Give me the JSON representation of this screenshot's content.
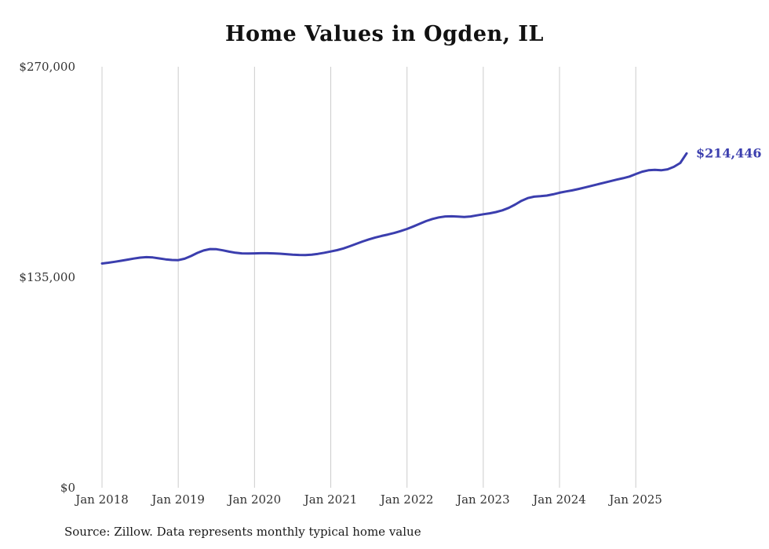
{
  "page": {
    "title": "Home Values in Ogden, IL",
    "source": "Source: Zillow. Data represents monthly typical home value"
  },
  "chart_data": {
    "type": "line",
    "title": "Home Values in Ogden, IL",
    "xlabel": "",
    "ylabel": "",
    "ylim": [
      0,
      270000
    ],
    "grid": "vertical-yearly",
    "legend": "none",
    "line_color": "#3b3eae",
    "grid_color": "#cccccc",
    "tick_color": "#333333",
    "end_label": "$214,446",
    "end_value": 214446,
    "y_ticks": [
      {
        "value": 0,
        "label": "$0"
      },
      {
        "value": 135000,
        "label": "$135,000"
      },
      {
        "value": 270000,
        "label": "$270,000"
      }
    ],
    "x_tick_labels": [
      "Jan 2018",
      "Jan 2019",
      "Jan 2020",
      "Jan 2021",
      "Jan 2022",
      "Jan 2023",
      "Jan 2024",
      "Jan 2025"
    ],
    "x": [
      "2018-01",
      "2018-02",
      "2018-03",
      "2018-04",
      "2018-05",
      "2018-06",
      "2018-07",
      "2018-08",
      "2018-09",
      "2018-10",
      "2018-11",
      "2018-12",
      "2019-01",
      "2019-02",
      "2019-03",
      "2019-04",
      "2019-05",
      "2019-06",
      "2019-07",
      "2019-08",
      "2019-09",
      "2019-10",
      "2019-11",
      "2019-12",
      "2020-01",
      "2020-02",
      "2020-03",
      "2020-04",
      "2020-05",
      "2020-06",
      "2020-07",
      "2020-08",
      "2020-09",
      "2020-10",
      "2020-11",
      "2020-12",
      "2021-01",
      "2021-02",
      "2021-03",
      "2021-04",
      "2021-05",
      "2021-06",
      "2021-07",
      "2021-08",
      "2021-09",
      "2021-10",
      "2021-11",
      "2021-12",
      "2022-01",
      "2022-02",
      "2022-03",
      "2022-04",
      "2022-05",
      "2022-06",
      "2022-07",
      "2022-08",
      "2022-09",
      "2022-10",
      "2022-11",
      "2022-12",
      "2023-01",
      "2023-02",
      "2023-03",
      "2023-04",
      "2023-05",
      "2023-06",
      "2023-07",
      "2023-08",
      "2023-09",
      "2023-10",
      "2023-11",
      "2023-12",
      "2024-01",
      "2024-02",
      "2024-03",
      "2024-04",
      "2024-05",
      "2024-06",
      "2024-07",
      "2024-08",
      "2024-09",
      "2024-10",
      "2024-11",
      "2024-12",
      "2025-01",
      "2025-02",
      "2025-03",
      "2025-04",
      "2025-05",
      "2025-06",
      "2025-07",
      "2025-08",
      "2025-09"
    ],
    "values": [
      143800,
      144300,
      144900,
      145600,
      146300,
      147000,
      147600,
      147900,
      147700,
      147100,
      146500,
      146100,
      146000,
      146900,
      148600,
      150600,
      152200,
      153100,
      153000,
      152300,
      151400,
      150700,
      150300,
      150200,
      150300,
      150400,
      150400,
      150300,
      150100,
      149800,
      149500,
      149300,
      149200,
      149500,
      150000,
      150700,
      151500,
      152400,
      153500,
      154900,
      156400,
      157900,
      159300,
      160500,
      161500,
      162400,
      163400,
      164600,
      166000,
      167600,
      169300,
      171000,
      172400,
      173400,
      174000,
      174100,
      173900,
      173700,
      174000,
      174700,
      175400,
      176000,
      176800,
      177900,
      179500,
      181600,
      184000,
      185800,
      186700,
      187000,
      187400,
      188200,
      189200,
      190000,
      190700,
      191600,
      192600,
      193600,
      194600,
      195600,
      196600,
      197600,
      198500,
      199600,
      201200,
      202700,
      203600,
      203900,
      203600,
      204200,
      205800,
      208300,
      214446
    ]
  }
}
